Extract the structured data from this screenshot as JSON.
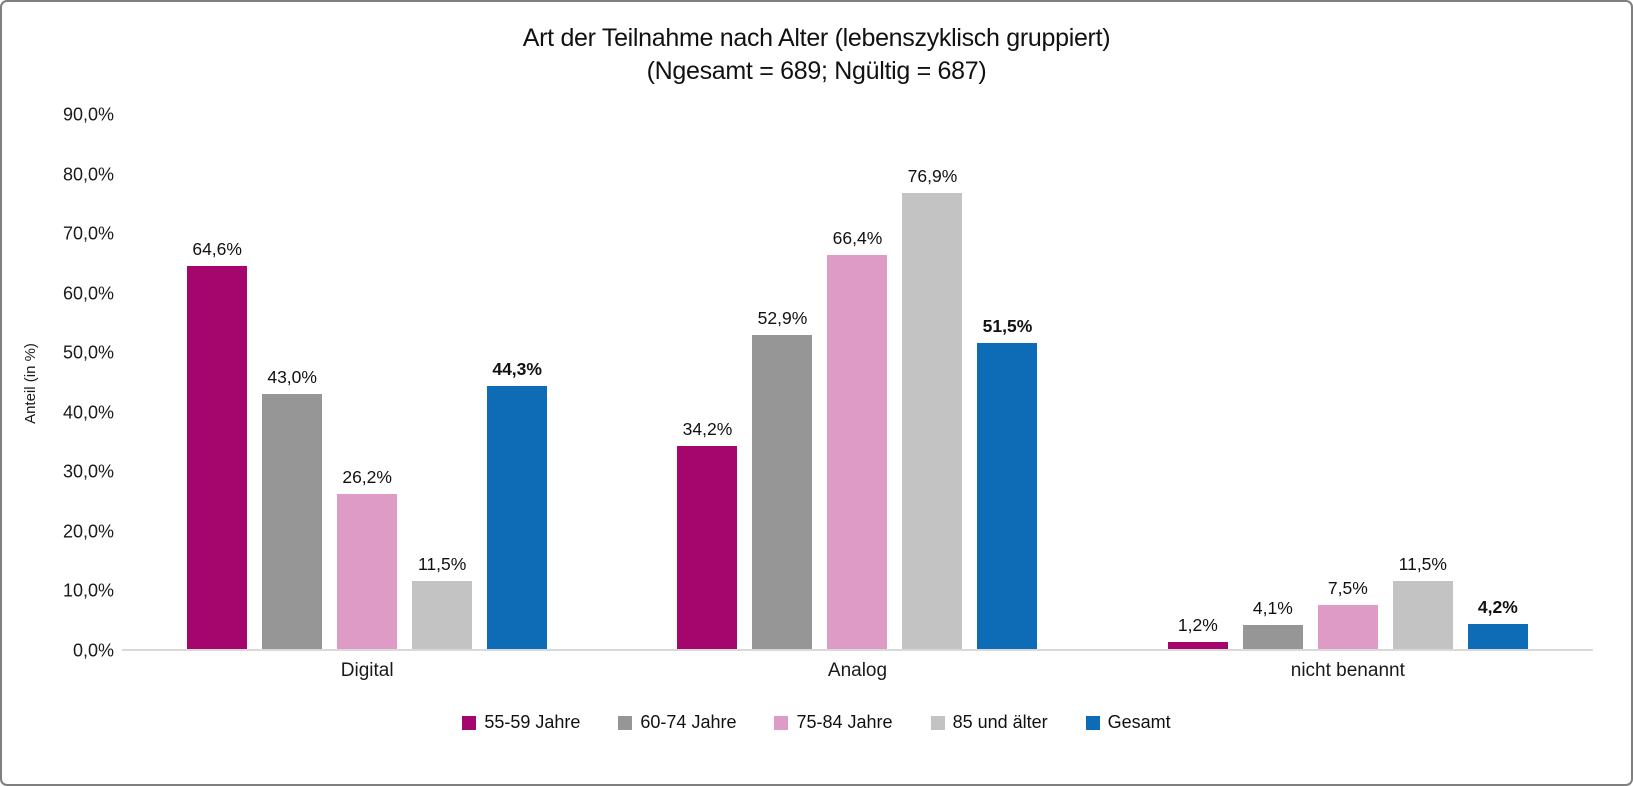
{
  "figure": {
    "title_line1": "Art der Teilnahme nach Alter (lebenszyklisch gruppiert)",
    "title_line2": "(Ngesamt = 689; Ngültig = 687)"
  },
  "chart_data": {
    "type": "bar",
    "title": "Art der Teilnahme nach Alter (lebenszyklisch gruppiert)",
    "subtitle": "(Ngesamt = 689; Ngültig = 687)",
    "xlabel": "",
    "ylabel": "Anteil (in %)",
    "ylim": [
      0,
      90
    ],
    "ytick_step": 10,
    "ytick_labels_bottom_to_top": [
      "0,0%",
      "10,0%",
      "20,0%",
      "30,0%",
      "40,0%",
      "50,0%",
      "60,0%",
      "70,0%",
      "80,0%",
      "90,0%"
    ],
    "grid": false,
    "legend_position": "bottom",
    "categories": [
      "Digital",
      "Analog",
      "nicht benannt"
    ],
    "series": [
      {
        "name": "55-59 Jahre",
        "color": "#A4066E",
        "values": [
          64.6,
          34.2,
          1.2
        ],
        "value_labels": [
          "64,6%",
          "34,2%",
          "1,2%"
        ],
        "bold_labels": false
      },
      {
        "name": "60-74 Jahre",
        "color": "#969696",
        "values": [
          43.0,
          52.9,
          4.1
        ],
        "value_labels": [
          "43,0%",
          "52,9%",
          "4,1%"
        ],
        "bold_labels": false
      },
      {
        "name": "75-84 Jahre",
        "color": "#DE9BC6",
        "values": [
          26.2,
          66.4,
          7.5
        ],
        "value_labels": [
          "26,2%",
          "66,4%",
          "7,5%"
        ],
        "bold_labels": false
      },
      {
        "name": "85 und älter",
        "color": "#C3C3C3",
        "values": [
          11.5,
          76.9,
          11.5
        ],
        "value_labels": [
          "11,5%",
          "76,9%",
          "11,5%"
        ],
        "bold_labels": false
      },
      {
        "name": "Gesamt",
        "color": "#0D6CB5",
        "values": [
          44.3,
          51.5,
          4.2
        ],
        "value_labels": [
          "44,3%",
          "51,5%",
          "4,2%"
        ],
        "bold_labels": true
      }
    ],
    "colors": {
      "axis_line": "#D9D9D9",
      "figure_border": "#7F7F7F",
      "text": "#111111"
    }
  }
}
